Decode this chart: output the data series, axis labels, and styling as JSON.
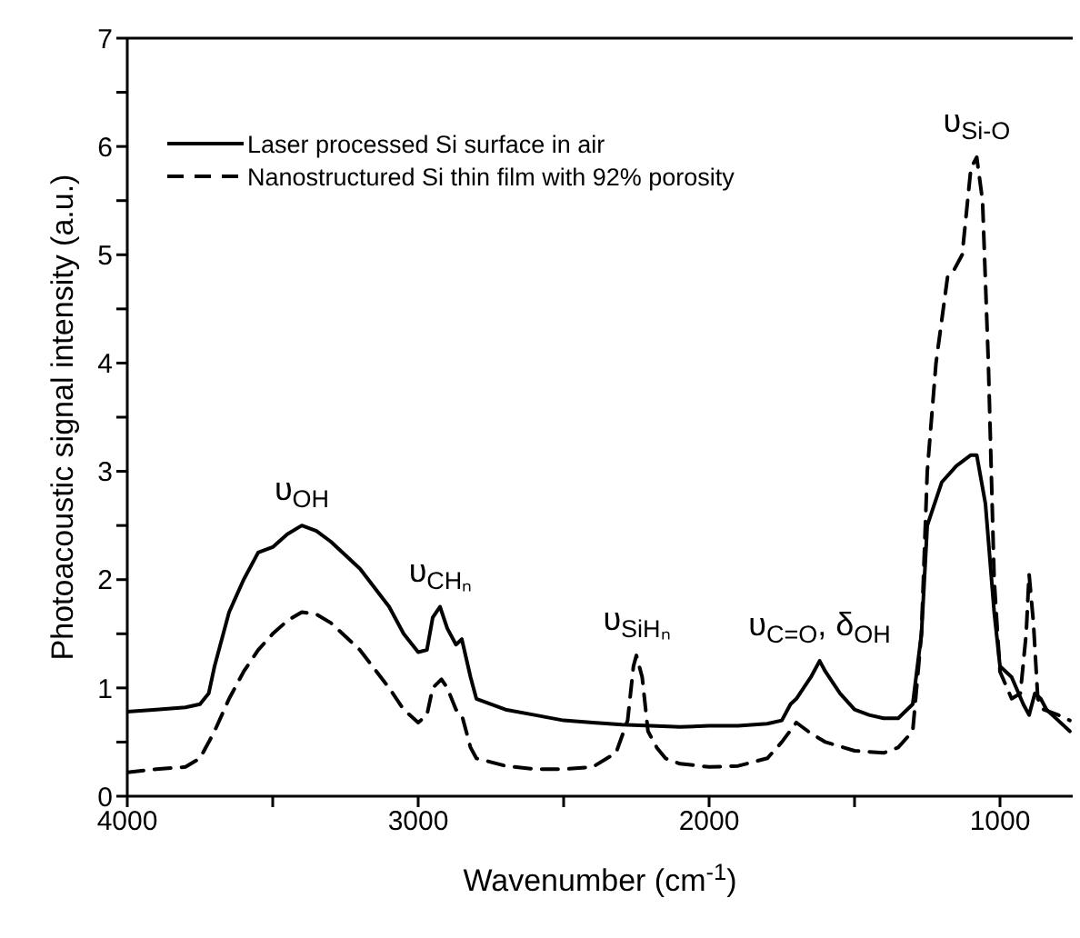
{
  "chart_data": {
    "type": "line",
    "xlabel": "Wavenumber (cm$^{-1}$)",
    "ylabel": "Photoacoustic signal intensity (a.u.)",
    "xlim": [
      4000,
      750
    ],
    "ylim": [
      0,
      7
    ],
    "xticks": [
      4000,
      {
        "value": 3500,
        "label": null
      },
      3000,
      {
        "value": 2500,
        "label": null
      },
      2000,
      {
        "value": 1500,
        "label": null
      },
      1000
    ],
    "yticks": [
      0,
      {
        "value": 0.5,
        "label": null
      },
      1,
      {
        "value": 1.5,
        "label": null
      },
      2,
      {
        "value": 2.5,
        "label": null
      },
      3,
      {
        "value": 3.5,
        "label": null
      },
      4,
      {
        "value": 4.5,
        "label": null
      },
      5,
      {
        "value": 5.5,
        "label": null
      },
      6,
      {
        "value": 6.5,
        "label": null
      },
      7
    ],
    "grid": false,
    "legend": "top left",
    "marker": "none",
    "series": [
      {
        "name": "Laser processed Si surface in air",
        "color": "#000000",
        "line_style": "solid",
        "x": [
          4000,
          3900,
          3800,
          3750,
          3720,
          3700,
          3650,
          3600,
          3550,
          3500,
          3450,
          3400,
          3350,
          3300,
          3200,
          3100,
          3050,
          3000,
          2970,
          2950,
          2925,
          2900,
          2870,
          2850,
          2820,
          2800,
          2700,
          2600,
          2500,
          2400,
          2300,
          2200,
          2100,
          2000,
          1900,
          1800,
          1750,
          1720,
          1700,
          1650,
          1620,
          1600,
          1550,
          1500,
          1450,
          1400,
          1350,
          1300,
          1270,
          1250,
          1200,
          1150,
          1100,
          1080,
          1050,
          1020,
          1000,
          960,
          920,
          900,
          880,
          860,
          840,
          800,
          760
        ],
        "values": [
          0.78,
          0.8,
          0.82,
          0.85,
          0.95,
          1.2,
          1.7,
          2.0,
          2.25,
          2.3,
          2.42,
          2.5,
          2.45,
          2.35,
          2.1,
          1.75,
          1.5,
          1.33,
          1.35,
          1.65,
          1.75,
          1.55,
          1.4,
          1.45,
          1.1,
          0.9,
          0.8,
          0.75,
          0.7,
          0.68,
          0.66,
          0.65,
          0.64,
          0.65,
          0.65,
          0.67,
          0.7,
          0.85,
          0.9,
          1.1,
          1.25,
          1.15,
          0.95,
          0.8,
          0.75,
          0.72,
          0.72,
          0.85,
          1.5,
          2.5,
          2.9,
          3.05,
          3.15,
          3.15,
          2.7,
          1.7,
          1.2,
          1.1,
          0.85,
          0.75,
          0.95,
          0.9,
          0.8,
          0.7,
          0.6
        ]
      },
      {
        "name": "Nanostructured Si thin film with 92% porosity",
        "color": "#000000",
        "line_style": "dashed",
        "x": [
          4000,
          3900,
          3800,
          3750,
          3700,
          3650,
          3600,
          3550,
          3500,
          3450,
          3400,
          3350,
          3300,
          3200,
          3100,
          3050,
          3000,
          2970,
          2950,
          2920,
          2900,
          2870,
          2850,
          2820,
          2800,
          2700,
          2600,
          2500,
          2400,
          2320,
          2280,
          2260,
          2250,
          2230,
          2210,
          2180,
          2150,
          2100,
          2000,
          1900,
          1800,
          1750,
          1700,
          1650,
          1600,
          1500,
          1400,
          1350,
          1300,
          1270,
          1250,
          1220,
          1180,
          1160,
          1130,
          1100,
          1080,
          1060,
          1040,
          1020,
          1000,
          960,
          930,
          910,
          900,
          885,
          870,
          850,
          800,
          760
        ],
        "values": [
          0.22,
          0.25,
          0.27,
          0.35,
          0.6,
          0.9,
          1.15,
          1.35,
          1.5,
          1.62,
          1.7,
          1.68,
          1.6,
          1.35,
          1.0,
          0.8,
          0.68,
          0.75,
          1.0,
          1.08,
          1.0,
          0.8,
          0.75,
          0.45,
          0.35,
          0.28,
          0.25,
          0.25,
          0.27,
          0.4,
          0.7,
          1.2,
          1.3,
          1.1,
          0.6,
          0.45,
          0.35,
          0.3,
          0.27,
          0.28,
          0.35,
          0.5,
          0.68,
          0.58,
          0.5,
          0.42,
          0.4,
          0.45,
          0.6,
          1.5,
          3.0,
          4.0,
          4.8,
          4.85,
          5.0,
          5.8,
          5.9,
          5.5,
          4.0,
          2.0,
          1.15,
          0.9,
          0.95,
          1.5,
          2.05,
          1.6,
          0.9,
          0.8,
          0.75,
          0.7
        ]
      }
    ],
    "annotations": [
      {
        "text": "υ$_{OH}$",
        "x": 3400,
        "y": 2.5
      },
      {
        "text": "υ$_{CHₙ}$",
        "x": 2925,
        "y": 1.75
      },
      {
        "text": "υ$_{SiHₙ}$",
        "x": 2250,
        "y": 1.3
      },
      {
        "text": "υ$_{C=O}$, δ$_{OH}$",
        "x": 1620,
        "y": 1.25
      },
      {
        "text": "υ$_{Si-O}$",
        "x": 1080,
        "y": 5.9
      }
    ]
  }
}
